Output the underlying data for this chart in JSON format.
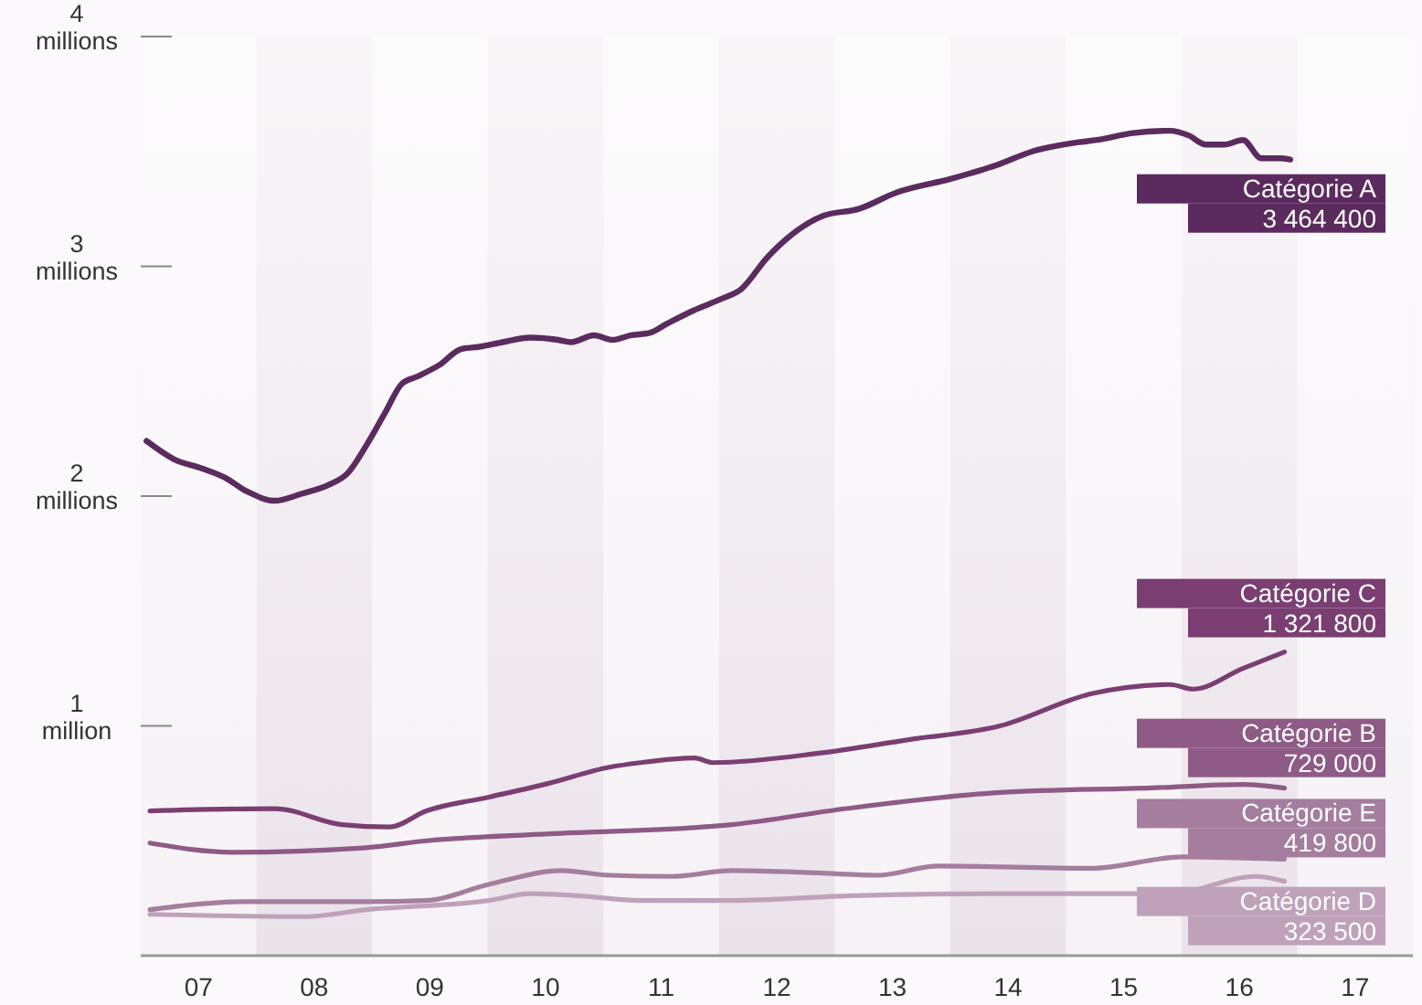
{
  "chart_data": {
    "type": "line",
    "xlim": [
      6.5,
      17.5
    ],
    "xticks": [
      {
        "value": 7,
        "label": "07"
      },
      {
        "value": 8,
        "label": "08"
      },
      {
        "value": 9,
        "label": "09"
      },
      10,
      11,
      12,
      13,
      14,
      15,
      16,
      17
    ],
    "ylim": [
      0,
      4000000
    ],
    "yticks": [
      {
        "value": 1000000,
        "label": "1 million"
      },
      {
        "value": 2000000,
        "label": "2 millions"
      },
      {
        "value": 3000000,
        "label": "3 millions"
      },
      {
        "value": 4000000,
        "label": "4 millions"
      }
    ],
    "grid": false,
    "bands": [
      {
        "axis": "x",
        "from": 7.5,
        "to": 8.5,
        "color": "#ebe3ea"
      },
      {
        "axis": "x",
        "from": 9.5,
        "to": 10.5,
        "color": "#ebe3ea"
      },
      {
        "axis": "x",
        "from": 11.5,
        "to": 12.5,
        "color": "#ebe3ea"
      },
      {
        "axis": "x",
        "from": 13.5,
        "to": 14.5,
        "color": "#ebe3ea"
      },
      {
        "axis": "x",
        "from": 15.5,
        "to": 16.5,
        "color": "#ebe3ea"
      }
    ],
    "series": [
      {
        "name": "Catégorie A",
        "color": "#5b2a5e",
        "x": [
          6.55,
          6.79,
          7.03,
          7.23,
          7.42,
          7.66,
          7.89,
          8.13,
          8.29,
          8.45,
          8.61,
          8.76,
          8.89,
          9.08,
          9.27,
          9.43,
          9.63,
          9.87,
          10.11,
          10.22,
          10.42,
          10.58,
          10.74,
          10.9,
          11.05,
          11.29,
          11.53,
          11.69,
          11.92,
          12.4,
          12.71,
          13.03,
          13.5,
          13.9,
          14.21,
          14.61,
          14.77,
          15.08,
          15.4,
          15.56,
          15.71,
          15.87,
          16.03,
          16.19,
          16.35,
          16.44
        ],
        "values": [
          2240000,
          2160000,
          2120000,
          2080000,
          2020000,
          1980000,
          2010000,
          2050000,
          2100000,
          2220000,
          2360000,
          2490000,
          2520000,
          2570000,
          2640000,
          2650000,
          2670000,
          2690000,
          2680000,
          2670000,
          2700000,
          2680000,
          2700000,
          2710000,
          2750000,
          2810000,
          2860000,
          2900000,
          3040000,
          3220000,
          3250000,
          3320000,
          3380000,
          3440000,
          3500000,
          3540000,
          3550000,
          3580000,
          3590000,
          3570000,
          3530000,
          3530000,
          3550000,
          3470000,
          3470000,
          3464400
        ],
        "value_labels": [
          null,
          null,
          null,
          null,
          null,
          null,
          null,
          null,
          null,
          null,
          null,
          null,
          null,
          null,
          null,
          null,
          null,
          null,
          null,
          null,
          null,
          null,
          null,
          null,
          null,
          null,
          null,
          null,
          null,
          null,
          null,
          null,
          null,
          null,
          null,
          null,
          null,
          null,
          null,
          null,
          null,
          null,
          null,
          null,
          null,
          "3 464 400"
        ]
      },
      {
        "name": "Catégorie C",
        "color": "#7a3e72",
        "x": [
          6.58,
          7.66,
          8.24,
          8.65,
          8.97,
          9.51,
          10.03,
          10.55,
          10.82,
          11.29,
          11.45,
          12.35,
          13.14,
          13.93,
          14.72,
          15.4,
          15.6,
          16.03,
          16.39
        ],
        "values": [
          630000,
          640000,
          570000,
          560000,
          630000,
          690000,
          750000,
          820000,
          840000,
          860000,
          840000,
          880000,
          940000,
          1000000,
          1140000,
          1180000,
          1160000,
          1250000,
          1321800
        ],
        "value_labels": [
          null,
          null,
          null,
          null,
          null,
          null,
          null,
          null,
          null,
          null,
          null,
          null,
          null,
          null,
          null,
          null,
          null,
          null,
          "1 321 800"
        ]
      },
      {
        "name": "Catégorie B",
        "color": "#8e5a86",
        "x": [
          6.58,
          7.29,
          8.45,
          8.97,
          10.03,
          11.61,
          12.6,
          13.93,
          15.24,
          16.03,
          16.39
        ],
        "values": [
          490000,
          450000,
          470000,
          500000,
          530000,
          570000,
          640000,
          710000,
          730000,
          745000,
          729000
        ],
        "value_labels": [
          null,
          null,
          null,
          null,
          null,
          null,
          null,
          null,
          null,
          null,
          "729 000"
        ]
      },
      {
        "name": "Catégorie E",
        "color": "#a57d9e",
        "x": [
          6.58,
          7.39,
          8.45,
          8.97,
          9.51,
          10.14,
          10.55,
          11.09,
          11.61,
          12.35,
          12.87,
          13.39,
          14.72,
          15.51,
          16.39
        ],
        "values": [
          200000,
          235000,
          235000,
          240000,
          310000,
          370000,
          350000,
          345000,
          370000,
          360000,
          350000,
          390000,
          380000,
          430000,
          419800
        ],
        "value_labels": [
          null,
          null,
          null,
          null,
          null,
          null,
          null,
          null,
          null,
          null,
          null,
          null,
          null,
          null,
          "419 800"
        ]
      },
      {
        "name": "Catégorie D",
        "color": "#bfa2ba",
        "x": [
          6.58,
          7.92,
          8.45,
          9.51,
          9.87,
          10.3,
          10.82,
          11.61,
          12.6,
          13.93,
          15.4,
          16.14,
          16.39
        ],
        "values": [
          180000,
          170000,
          200000,
          240000,
          270000,
          260000,
          240000,
          240000,
          260000,
          270000,
          270000,
          345000,
          323500
        ],
        "value_labels": [
          null,
          null,
          null,
          null,
          null,
          null,
          null,
          null,
          null,
          null,
          null,
          null,
          "323 500"
        ]
      }
    ]
  }
}
